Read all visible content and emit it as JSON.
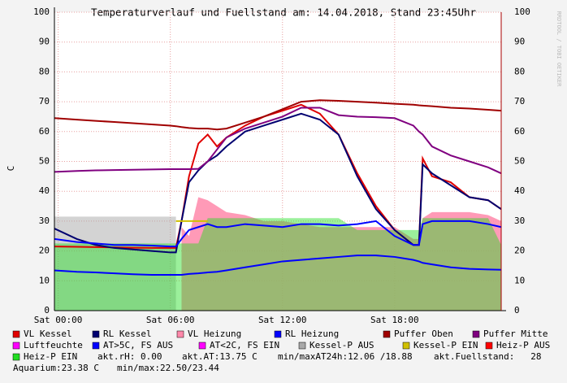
{
  "chart_data": {
    "type": "line",
    "title": "Temperaturverlauf und Fuellstand am: 14.04.2018, Stand 23:45Uhr",
    "y_label": "C",
    "watermark": "RRDTOOL / TOBI OETIKER",
    "x": [
      -0.2,
      1,
      2,
      3,
      4,
      5,
      6,
      6.3,
      6.6,
      7,
      7.5,
      8,
      8.5,
      9,
      10,
      11,
      12,
      13,
      14,
      15,
      16,
      17,
      18,
      19,
      19.3,
      19.5,
      20,
      21,
      22,
      23,
      23.7
    ],
    "xlim": [
      -0.2,
      23.7
    ],
    "xticks": [
      {
        "value": 0,
        "label": "Sat 00:00"
      },
      {
        "value": 6,
        "label": "Sat 06:00"
      },
      {
        "value": 12,
        "label": "Sat 12:00"
      },
      {
        "value": 18,
        "label": "Sat 18:00"
      }
    ],
    "ylim": [
      0,
      100
    ],
    "yticks": [
      0,
      10,
      20,
      30,
      40,
      50,
      60,
      70,
      80,
      90,
      100
    ],
    "grid": true,
    "series": [
      {
        "name": "VL Kessel",
        "color": "#e00000",
        "style": "line",
        "values": [
          21.5,
          21.4,
          21.3,
          21.2,
          21.1,
          21,
          21,
          21,
          30,
          45,
          56,
          59,
          55,
          58,
          62,
          65,
          67,
          69,
          66,
          59,
          46,
          35,
          27,
          22,
          22,
          51,
          45,
          43,
          38,
          37,
          34
        ]
      },
      {
        "name": "RL Kessel",
        "color": "#000070",
        "style": "line",
        "values": [
          27.5,
          24,
          22,
          21,
          20.5,
          20,
          19.5,
          19.5,
          30,
          43,
          47,
          50,
          52,
          55,
          60,
          62,
          64,
          66,
          64,
          59,
          45,
          34,
          27,
          22,
          22,
          49,
          46,
          42,
          38,
          37,
          34
        ]
      },
      {
        "name": "VL Heizung",
        "color": "#ff88aa",
        "style": "area",
        "fill_opacity": 0.85,
        "values": [
          null,
          null,
          null,
          null,
          null,
          null,
          null,
          null,
          28,
          25,
          38,
          37,
          35,
          33,
          32,
          30,
          30,
          29,
          28,
          28,
          28,
          28,
          28,
          24,
          24,
          31,
          33,
          33,
          33,
          32,
          30
        ]
      },
      {
        "name": "RL Heizung",
        "color": "#0000ff",
        "style": "line",
        "values": [
          24,
          23,
          22.5,
          22,
          22,
          21.8,
          21.5,
          21.5,
          24,
          27,
          28,
          29,
          28,
          28,
          29,
          28.5,
          28,
          29,
          29,
          28.5,
          29,
          30,
          25,
          22,
          22,
          29,
          30,
          30,
          30,
          29,
          28
        ]
      },
      {
        "name": "Puffer Oben",
        "color": "#a00000",
        "style": "line",
        "values": [
          64.5,
          64,
          63.6,
          63.2,
          62.8,
          62.4,
          62,
          61.8,
          61.5,
          61.2,
          61,
          61,
          60.7,
          61,
          63,
          65,
          67.5,
          70,
          70.5,
          70.3,
          70,
          69.7,
          69.3,
          69,
          68.8,
          68.7,
          68.5,
          68,
          67.7,
          67.3,
          67
        ]
      },
      {
        "name": "Puffer Mitte",
        "color": "#800080",
        "style": "line",
        "values": [
          46.5,
          46.8,
          47,
          47.1,
          47.2,
          47.3,
          47.4,
          47.4,
          47.4,
          47.4,
          47.5,
          50,
          54,
          58,
          61,
          63,
          65,
          68,
          68,
          65.5,
          65,
          64.8,
          64.5,
          62,
          60,
          59,
          55,
          52,
          50,
          48,
          46
        ]
      },
      {
        "name": "Luftfeuchte",
        "color": "#ff00ff"
      },
      {
        "name": "AT>5C, FS AUS",
        "color": "#0000ff",
        "style": "line",
        "values": [
          13.5,
          13,
          12.8,
          12.5,
          12.2,
          12,
          12,
          12,
          12,
          12.3,
          12.5,
          12.8,
          13,
          13.5,
          14.5,
          15.5,
          16.5,
          17,
          17.5,
          18,
          18.5,
          18.5,
          18,
          17,
          16.5,
          16,
          15.5,
          14.5,
          14,
          13.8,
          13.7
        ]
      },
      {
        "name": "AT<2C, FS EIN",
        "color": "#ff00ff"
      },
      {
        "name": "Kessel-P AUS",
        "color": "#a8a8a8",
        "style": "area",
        "fill_opacity": 0.5,
        "values": [
          31.5,
          31.5,
          31.5,
          31.5,
          31.5,
          31.5,
          31.5,
          31.5,
          null,
          null,
          null,
          null,
          null,
          null,
          null,
          null,
          null,
          null,
          null,
          null,
          null,
          null,
          null,
          null,
          null,
          null,
          null,
          null,
          null,
          null,
          null
        ]
      },
      {
        "name": "Kessel-P EIN",
        "color": "#d0c000",
        "style": "line",
        "values": [
          null,
          null,
          null,
          null,
          null,
          null,
          null,
          30,
          30,
          30,
          30,
          30,
          null,
          null,
          null,
          null,
          null,
          null,
          null,
          null,
          null,
          null,
          null,
          null,
          null,
          null,
          null,
          null,
          null,
          null,
          null
        ]
      },
      {
        "name": "Heiz-P AUS",
        "color": "#ff0000"
      },
      {
        "name": "Heiz-P EIN",
        "color": "#22dd22",
        "style": "area",
        "fill_opacity": 0.45,
        "values": [
          22.5,
          22.5,
          22.5,
          22.5,
          22.5,
          22.5,
          22.5,
          22.5,
          22.5,
          22.5,
          22.5,
          31,
          31,
          31,
          31,
          31,
          31,
          31,
          31,
          31,
          27,
          27,
          27,
          27,
          27,
          31,
          31,
          31,
          31,
          31,
          22
        ]
      }
    ],
    "comments": [
      [
        "akt.rH: 0.00",
        "akt.AT:13.75 C",
        "min/maxAT24h:12.06 /18.88",
        "akt.Fuellstand:   28"
      ],
      [
        "Aquarium:23.38 C",
        "min/max:22.50/23.44"
      ]
    ]
  }
}
